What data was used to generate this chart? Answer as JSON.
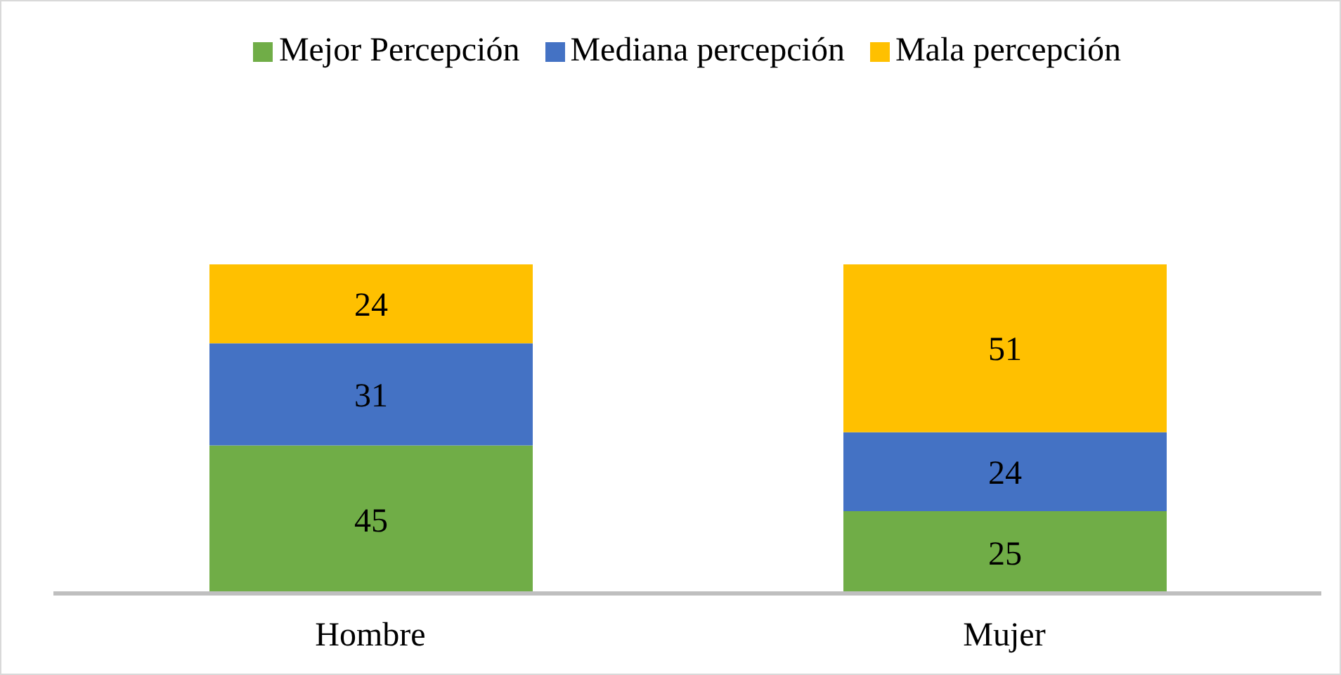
{
  "chart_data": {
    "type": "bar",
    "stacked": true,
    "data_labels": true,
    "legend": "top",
    "grid": false,
    "categories": [
      "Hombre",
      "Mujer"
    ],
    "series": [
      {
        "name": "Mejor Percepción",
        "color": "#70ad47",
        "values": [
          45,
          25
        ]
      },
      {
        "name": "Mediana percepción",
        "color": "#4472c4",
        "values": [
          31,
          24
        ]
      },
      {
        "name": "Mala percepción",
        "color": "#ffc000",
        "values": [
          24,
          51
        ]
      }
    ]
  }
}
